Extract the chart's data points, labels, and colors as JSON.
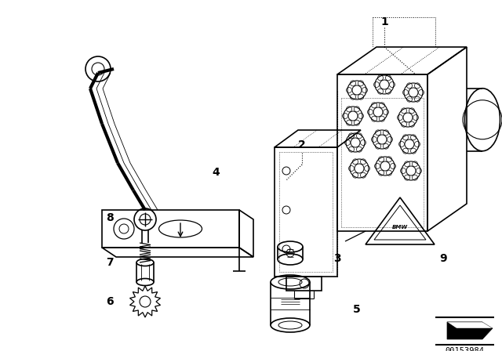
{
  "bg_color": "#ffffff",
  "line_color": "#000000",
  "fig_width": 6.4,
  "fig_height": 4.48,
  "dpi": 100,
  "catalog_number": "00153984"
}
